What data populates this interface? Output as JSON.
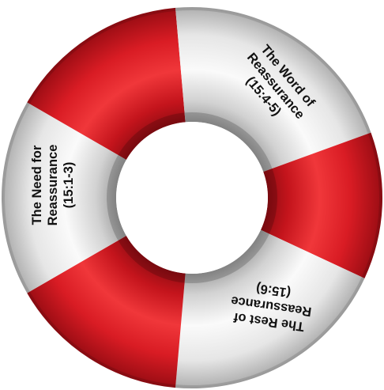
{
  "diagram": {
    "colors": {
      "red": "#d61f26",
      "red_dark": "#9e0f16",
      "white": "#f4f4f4",
      "white_dark": "#b9b9b9",
      "background": "#ffffff"
    },
    "sections": [
      {
        "id": "need",
        "lines": [
          "The Need for",
          "Reassurance",
          "(15:1-3)"
        ]
      },
      {
        "id": "word",
        "lines": [
          "The Word of",
          "Reassurance",
          "(15:4-5)"
        ]
      },
      {
        "id": "rest",
        "lines": [
          "The Rest of",
          "Reassurance",
          "(15:6)"
        ]
      }
    ]
  }
}
